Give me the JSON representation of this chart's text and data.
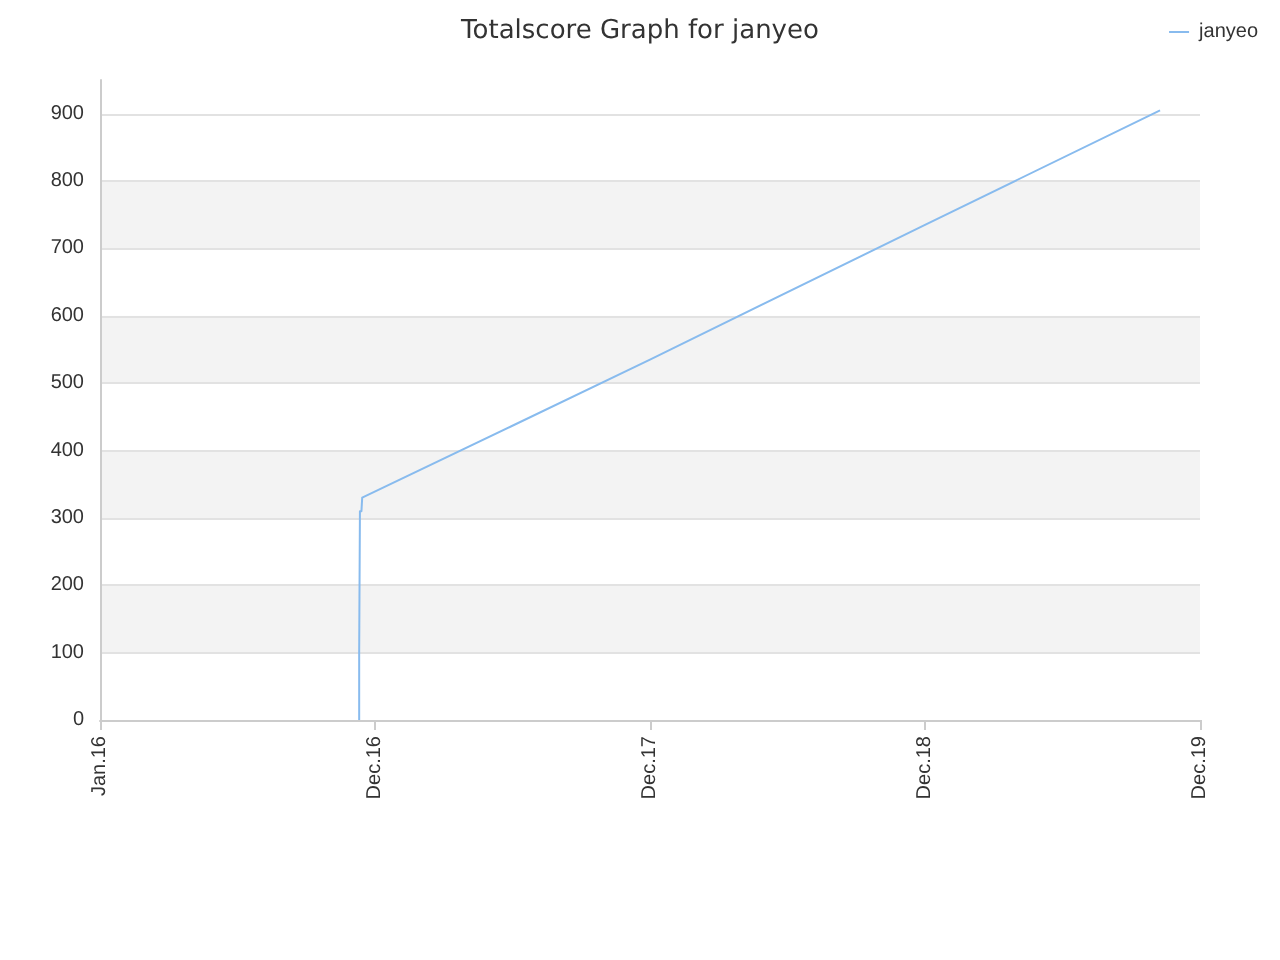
{
  "chart_data": {
    "type": "line",
    "title": "Totalscore Graph for janyeo",
    "x": [
      "2016-12-10",
      "2016-12-10",
      "2016-12-11",
      "2016-12-11",
      "2016-12-13",
      "2016-12-14",
      "2017-06-30",
      "2017-12-31",
      "2018-12-31",
      "2019-11-08"
    ],
    "series": [
      {
        "name": "janyeo",
        "color": "#88bbee",
        "values": [
          0,
          100,
          100,
          310,
          310,
          330,
          436,
          535,
          735,
          905
        ]
      }
    ],
    "xlim": [
      "2016-01-01",
      "2019-12-31"
    ],
    "xticks": [
      {
        "value": "2016-01-01",
        "label": "Jan.16"
      },
      {
        "value": "2016-12-31",
        "label": "Dec.16"
      },
      {
        "value": "2017-12-31",
        "label": "Dec.17"
      },
      {
        "value": "2018-12-31",
        "label": "Dec.18"
      },
      {
        "value": "2019-12-31",
        "label": "Dec.19"
      }
    ],
    "ylim": [
      0,
      950
    ],
    "yticks": [
      0,
      100,
      200,
      300,
      400,
      500,
      600,
      700,
      800,
      900
    ],
    "grid": "y",
    "legend": "top right",
    "marker": "none",
    "line_style": "solid"
  }
}
